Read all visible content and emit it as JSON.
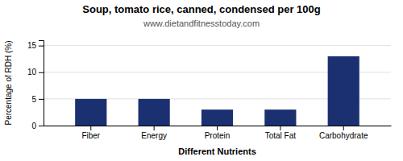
{
  "chart_data": {
    "type": "bar",
    "title": "Soup, tomato rice, canned, condensed per 100g",
    "subtitle": "www.dietandfitnesstoday.com",
    "xlabel": "Different Nutrients",
    "ylabel": "Percentage of RDH (%)",
    "categories": [
      "Fiber",
      "Energy",
      "Protein",
      "Total Fat",
      "Carbohydrate"
    ],
    "values": [
      5,
      5,
      3,
      3,
      13
    ],
    "color": "#1a3070",
    "ylim": [
      0,
      16
    ],
    "yticks": [
      0,
      5,
      10,
      15
    ],
    "grid": true
  }
}
